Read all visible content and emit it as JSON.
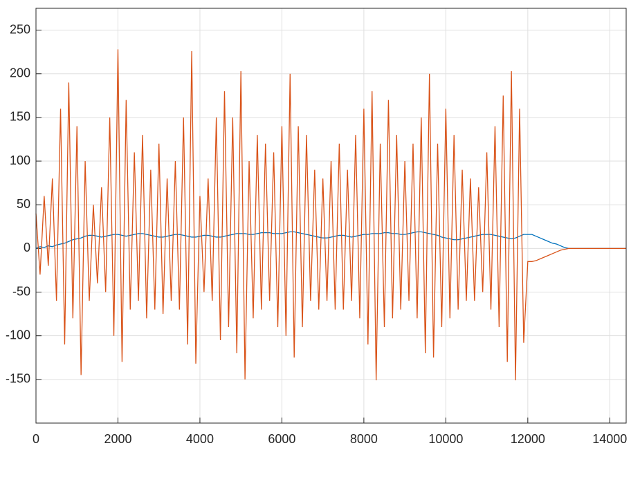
{
  "chart_data": {
    "type": "line",
    "x": [
      0,
      100,
      200,
      300,
      400,
      500,
      600,
      700,
      800,
      900,
      1000,
      1100,
      1200,
      1300,
      1400,
      1500,
      1600,
      1700,
      1800,
      1900,
      2000,
      2100,
      2200,
      2300,
      2400,
      2500,
      2600,
      2700,
      2800,
      2900,
      3000,
      3100,
      3200,
      3300,
      3400,
      3500,
      3600,
      3700,
      3800,
      3900,
      4000,
      4100,
      4200,
      4300,
      4400,
      4500,
      4600,
      4700,
      4800,
      4900,
      5000,
      5100,
      5200,
      5300,
      5400,
      5500,
      5600,
      5700,
      5800,
      5900,
      6000,
      6100,
      6200,
      6300,
      6400,
      6500,
      6600,
      6700,
      6800,
      6900,
      7000,
      7100,
      7200,
      7300,
      7400,
      7500,
      7600,
      7700,
      7800,
      7900,
      8000,
      8100,
      8200,
      8300,
      8400,
      8500,
      8600,
      8700,
      8800,
      8900,
      9000,
      9100,
      9200,
      9300,
      9400,
      9500,
      9600,
      9700,
      9800,
      9900,
      10000,
      10100,
      10200,
      10300,
      10400,
      10500,
      10600,
      10700,
      10800,
      10900,
      11000,
      11100,
      11200,
      11300,
      11400,
      11500,
      11600,
      11700,
      11800,
      11900,
      12000,
      12100,
      12200,
      12300,
      12400,
      12500,
      12600,
      12700,
      12800,
      12900,
      13000,
      13100,
      13200,
      13300,
      13400,
      13500,
      13600,
      13700,
      13800,
      13900,
      14000,
      14100,
      14200,
      14300,
      14400
    ],
    "series": [
      {
        "color": "#0072bd",
        "values": [
          0,
          2,
          1,
          3,
          2,
          4,
          5,
          6,
          8,
          10,
          11,
          12,
          14,
          15,
          15,
          14,
          13,
          14,
          15,
          16,
          16,
          15,
          14,
          15,
          16,
          17,
          17,
          16,
          15,
          14,
          13,
          13,
          14,
          15,
          16,
          16,
          15,
          14,
          13,
          13,
          14,
          15,
          15,
          14,
          13,
          13,
          14,
          15,
          16,
          17,
          17,
          17,
          16,
          16,
          17,
          18,
          18,
          18,
          17,
          17,
          17,
          18,
          19,
          19,
          18,
          17,
          16,
          15,
          14,
          13,
          12,
          12,
          13,
          14,
          15,
          15,
          14,
          13,
          14,
          15,
          16,
          16,
          17,
          17,
          17,
          18,
          18,
          17,
          17,
          16,
          16,
          17,
          18,
          19,
          19,
          18,
          17,
          16,
          15,
          13,
          12,
          11,
          10,
          10,
          11,
          12,
          13,
          14,
          15,
          16,
          16,
          16,
          15,
          14,
          13,
          12,
          11,
          12,
          14,
          16,
          16,
          16,
          14,
          12,
          10,
          8,
          6,
          5,
          3,
          1,
          0,
          0,
          0,
          0,
          0,
          0,
          0,
          0,
          0,
          0,
          0,
          0,
          0,
          0,
          0
        ]
      },
      {
        "color": "#d95319",
        "values": [
          40,
          -30,
          60,
          -20,
          80,
          -60,
          160,
          -110,
          190,
          -80,
          140,
          -145,
          100,
          -60,
          50,
          -40,
          70,
          -50,
          150,
          -100,
          228,
          -130,
          170,
          -70,
          110,
          -60,
          130,
          -80,
          90,
          -70,
          120,
          -75,
          80,
          -60,
          100,
          -70,
          150,
          -110,
          226,
          -132,
          60,
          -50,
          80,
          -60,
          150,
          -105,
          180,
          -90,
          150,
          -120,
          203,
          -150,
          100,
          -80,
          130,
          -70,
          120,
          -60,
          110,
          -90,
          140,
          -100,
          200,
          -125,
          140,
          -90,
          130,
          -60,
          90,
          -70,
          80,
          -60,
          100,
          -70,
          120,
          -70,
          90,
          -60,
          130,
          -80,
          160,
          -110,
          180,
          -151,
          120,
          -90,
          170,
          -80,
          130,
          -70,
          100,
          -60,
          120,
          -80,
          150,
          -120,
          200,
          -125,
          120,
          -90,
          160,
          -80,
          130,
          -70,
          90,
          -60,
          80,
          -60,
          70,
          -50,
          110,
          -70,
          140,
          -90,
          175,
          -130,
          203,
          -151,
          160,
          -108,
          -15,
          -15,
          -14,
          -12,
          -10,
          -8,
          -6,
          -4,
          -2,
          -1,
          0,
          0,
          0,
          0,
          0,
          0,
          0,
          0,
          0,
          0,
          0,
          0,
          0,
          0,
          0
        ]
      }
    ],
    "xlim": [
      0,
      14400
    ],
    "xticks": [
      0,
      2000,
      4000,
      6000,
      8000,
      10000,
      12000,
      14000
    ],
    "ylim": [
      -200,
      275
    ],
    "yticks": [
      -150,
      -100,
      -50,
      0,
      50,
      100,
      150,
      200,
      250
    ],
    "grid": true
  }
}
